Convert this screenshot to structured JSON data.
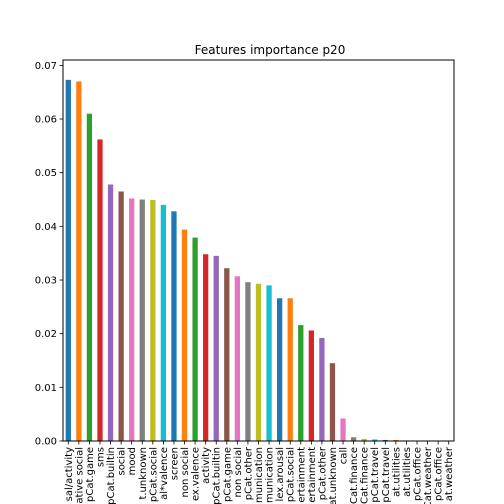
{
  "chart_data": {
    "type": "bar",
    "title": "Features importance p20",
    "xlabel": "",
    "ylabel": "",
    "ylim": [
      0,
      0.071
    ],
    "y_ticks": [
      0.0,
      0.01,
      0.02,
      0.03,
      0.04,
      0.05,
      0.06,
      0.07
    ],
    "y_tick_labels": [
      "0.00",
      "0.01",
      "0.02",
      "0.03",
      "0.04",
      "0.05",
      "0.06",
      "0.07"
    ],
    "grid": false,
    "legend": "none",
    "color_cycle": [
      "#1f77b4",
      "#ff7f0e",
      "#2ca02c",
      "#d62728",
      "#9467bd",
      "#8c564b",
      "#e377c2",
      "#7f7f7f",
      "#bcbd22",
      "#17becf"
    ],
    "categories": [
      "sal/activity",
      "ative social",
      "pCat.game",
      "sms",
      "pCat.builtin",
      "social",
      "mood",
      "t.unknown",
      "pCat.social",
      "al*valence",
      "screen",
      "non social",
      "ex.valence",
      "activity",
      "pCat.builtin",
      "pCat.game",
      "non social",
      "pCat.other",
      "munication",
      "munication",
      "lex.arousal",
      "pCat.social",
      "ertainment",
      "ertainment",
      "pCat.other",
      "at.unknown",
      "call",
      "Cat.finance",
      "Cat.finance",
      "pCat.travel",
      "pCat.travel",
      "at.utilities",
      "at.utilities",
      "pCat.office",
      "pCat.weather",
      "pCat.office",
      "at.weather"
    ],
    "values": [
      0.0673,
      0.067,
      0.061,
      0.0562,
      0.0478,
      0.0465,
      0.0452,
      0.045,
      0.0449,
      0.044,
      0.0428,
      0.0394,
      0.0379,
      0.0348,
      0.0345,
      0.0322,
      0.0307,
      0.0296,
      0.0293,
      0.029,
      0.0266,
      0.0266,
      0.0216,
      0.0206,
      0.0192,
      0.0145,
      0.0042,
      0.0007,
      0.0004,
      0.0003,
      0.0002,
      0.0002,
      0.0001,
      0.0,
      0.0,
      0.0,
      0.0
    ]
  }
}
